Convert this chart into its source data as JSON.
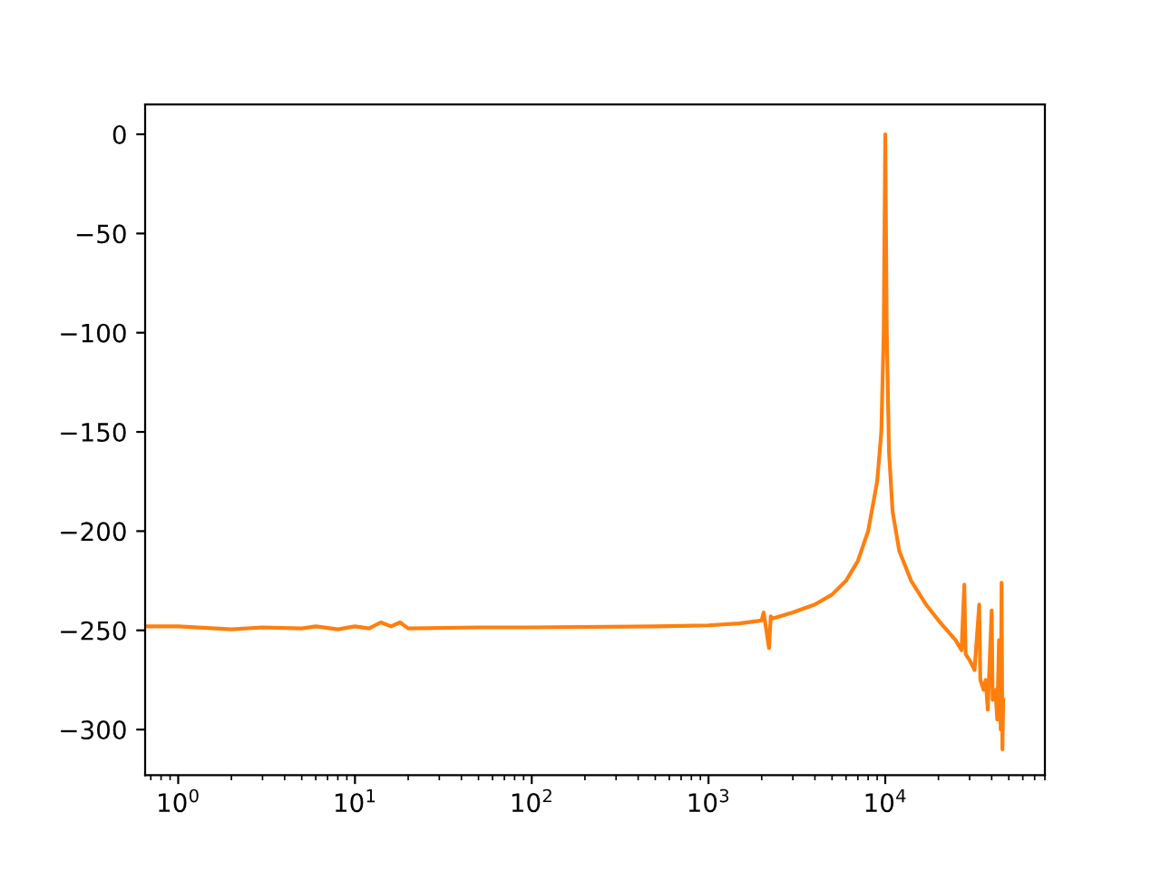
{
  "chart_data": {
    "type": "line",
    "log": "x",
    "grid": false,
    "legend": false,
    "marker": "none",
    "line_style": "solid",
    "xlim": [
      0.65,
      80000
    ],
    "ylim": [
      -323,
      15
    ],
    "xticks": [
      {
        "value": 1,
        "label": "10$^{0}$"
      },
      {
        "value": 10,
        "label": "10$^{1}$"
      },
      {
        "value": 100,
        "label": "10$^{2}$"
      },
      {
        "value": 1000,
        "label": "10$^{3}$"
      },
      {
        "value": 10000,
        "label": "10$^{4}$"
      }
    ],
    "yticks": [
      0,
      {
        "value": -50,
        "label": "−50"
      },
      {
        "value": -100,
        "label": "−100"
      },
      {
        "value": -150,
        "label": "−150"
      },
      {
        "value": -200,
        "label": "−200"
      },
      {
        "value": -250,
        "label": "−250"
      },
      {
        "value": -300,
        "label": "−300"
      }
    ],
    "series": [
      {
        "color": "#ff7f0e",
        "x": [
          0.65,
          1,
          2,
          3,
          5,
          6,
          8,
          10,
          12,
          14,
          16,
          18,
          20,
          50,
          100,
          500,
          1000,
          1500,
          2000,
          2050,
          2100,
          2200,
          2250,
          2300,
          3000,
          4000,
          5000,
          6000,
          7000,
          8000,
          9000,
          9500,
          9800,
          10000,
          10200,
          10500,
          11000,
          12000,
          14000,
          17000,
          20000,
          25000,
          27000,
          28000,
          28500,
          30000,
          32000,
          34000,
          34500,
          36000,
          37000,
          38000,
          39000,
          40000,
          40500,
          42000,
          43000,
          44000,
          45000,
          45500,
          46000,
          46500
        ],
        "values": [
          -248,
          -248,
          -249.5,
          -248.5,
          -249,
          -248,
          -249.5,
          -248,
          -249,
          -246,
          -248,
          -246,
          -249,
          -248.5,
          -248.5,
          -248,
          -247.5,
          -246.5,
          -245,
          -241,
          -247,
          -259,
          -243,
          -244,
          -241,
          -237,
          -232,
          -225,
          -215,
          -200,
          -175,
          -150,
          -100,
          0,
          -100,
          -160,
          -190,
          -210,
          -225,
          -237,
          -245,
          -255,
          -260,
          -227,
          -262,
          -265,
          -270,
          -237,
          -275,
          -280,
          -275,
          -290,
          -265,
          -240,
          -285,
          -280,
          -295,
          -255,
          -300,
          -226,
          -310,
          -285
        ]
      }
    ]
  }
}
